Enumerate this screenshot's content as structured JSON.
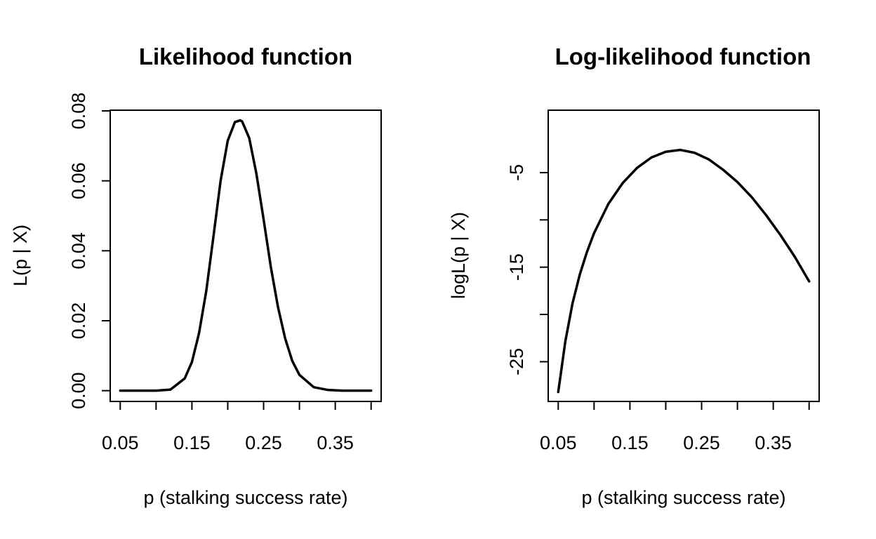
{
  "chart_data": [
    {
      "type": "line",
      "title": "Likelihood function",
      "xlabel": "p (stalking success rate)",
      "ylabel": "L(p | X)",
      "xlim": [
        0.036,
        0.414
      ],
      "ylim": [
        -0.00308,
        0.0802
      ],
      "x_tick_labels": [
        "0.05",
        "0.15",
        "0.25",
        "0.35"
      ],
      "x_minor_ticks": [
        0.05,
        0.1,
        0.15,
        0.2,
        0.25,
        0.3,
        0.35,
        0.4
      ],
      "y_ticks": [
        0.0,
        0.02,
        0.04,
        0.06,
        0.08
      ],
      "y_tick_labels": [
        "0.00",
        "0.02",
        "0.04",
        "0.06",
        "0.08"
      ],
      "grid": false,
      "series": [
        {
          "x": [
            0.05,
            0.075,
            0.1,
            0.12,
            0.14,
            0.15,
            0.16,
            0.17,
            0.18,
            0.19,
            0.2,
            0.21,
            0.2175,
            0.22,
            0.23,
            0.24,
            0.25,
            0.26,
            0.27,
            0.28,
            0.29,
            0.3,
            0.32,
            0.34,
            0.36,
            0.38,
            0.4
          ],
          "y": [
            0.0,
            0.0,
            0.0,
            0.0003,
            0.0035,
            0.0082,
            0.0165,
            0.0285,
            0.044,
            0.06,
            0.0715,
            0.0768,
            0.0773,
            0.077,
            0.0722,
            0.062,
            0.049,
            0.0355,
            0.024,
            0.015,
            0.0085,
            0.0045,
            0.001,
            0.0002,
            0.0,
            0.0,
            0.0
          ],
          "color": "#000000"
        }
      ]
    },
    {
      "type": "line",
      "title": "Log-likelihood function",
      "xlabel": "p (stalking success rate)",
      "ylabel": "logL(p | X)",
      "xlim": [
        0.036,
        0.414
      ],
      "ylim": [
        -29.2,
        1.6
      ],
      "x_tick_labels": [
        "0.05",
        "0.15",
        "0.25",
        "0.35"
      ],
      "x_minor_ticks": [
        0.05,
        0.1,
        0.15,
        0.2,
        0.25,
        0.3,
        0.35,
        0.4
      ],
      "y_ticks": [
        -25,
        -20,
        -15,
        -10,
        -5
      ],
      "y_tick_labels": [
        "-25",
        "",
        "-15",
        "",
        "-5"
      ],
      "grid": false,
      "series": [
        {
          "x": [
            0.05,
            0.06,
            0.07,
            0.08,
            0.09,
            0.1,
            0.12,
            0.14,
            0.16,
            0.18,
            0.2,
            0.22,
            0.24,
            0.26,
            0.28,
            0.3,
            0.32,
            0.34,
            0.36,
            0.38,
            0.4
          ],
          "y": [
            -28.2,
            -22.8,
            -18.8,
            -15.8,
            -13.4,
            -11.4,
            -8.3,
            -6.1,
            -4.5,
            -3.4,
            -2.8,
            -2.6,
            -2.9,
            -3.6,
            -4.7,
            -6.0,
            -7.6,
            -9.5,
            -11.6,
            -13.9,
            -16.5
          ],
          "color": "#000000"
        }
      ]
    }
  ]
}
